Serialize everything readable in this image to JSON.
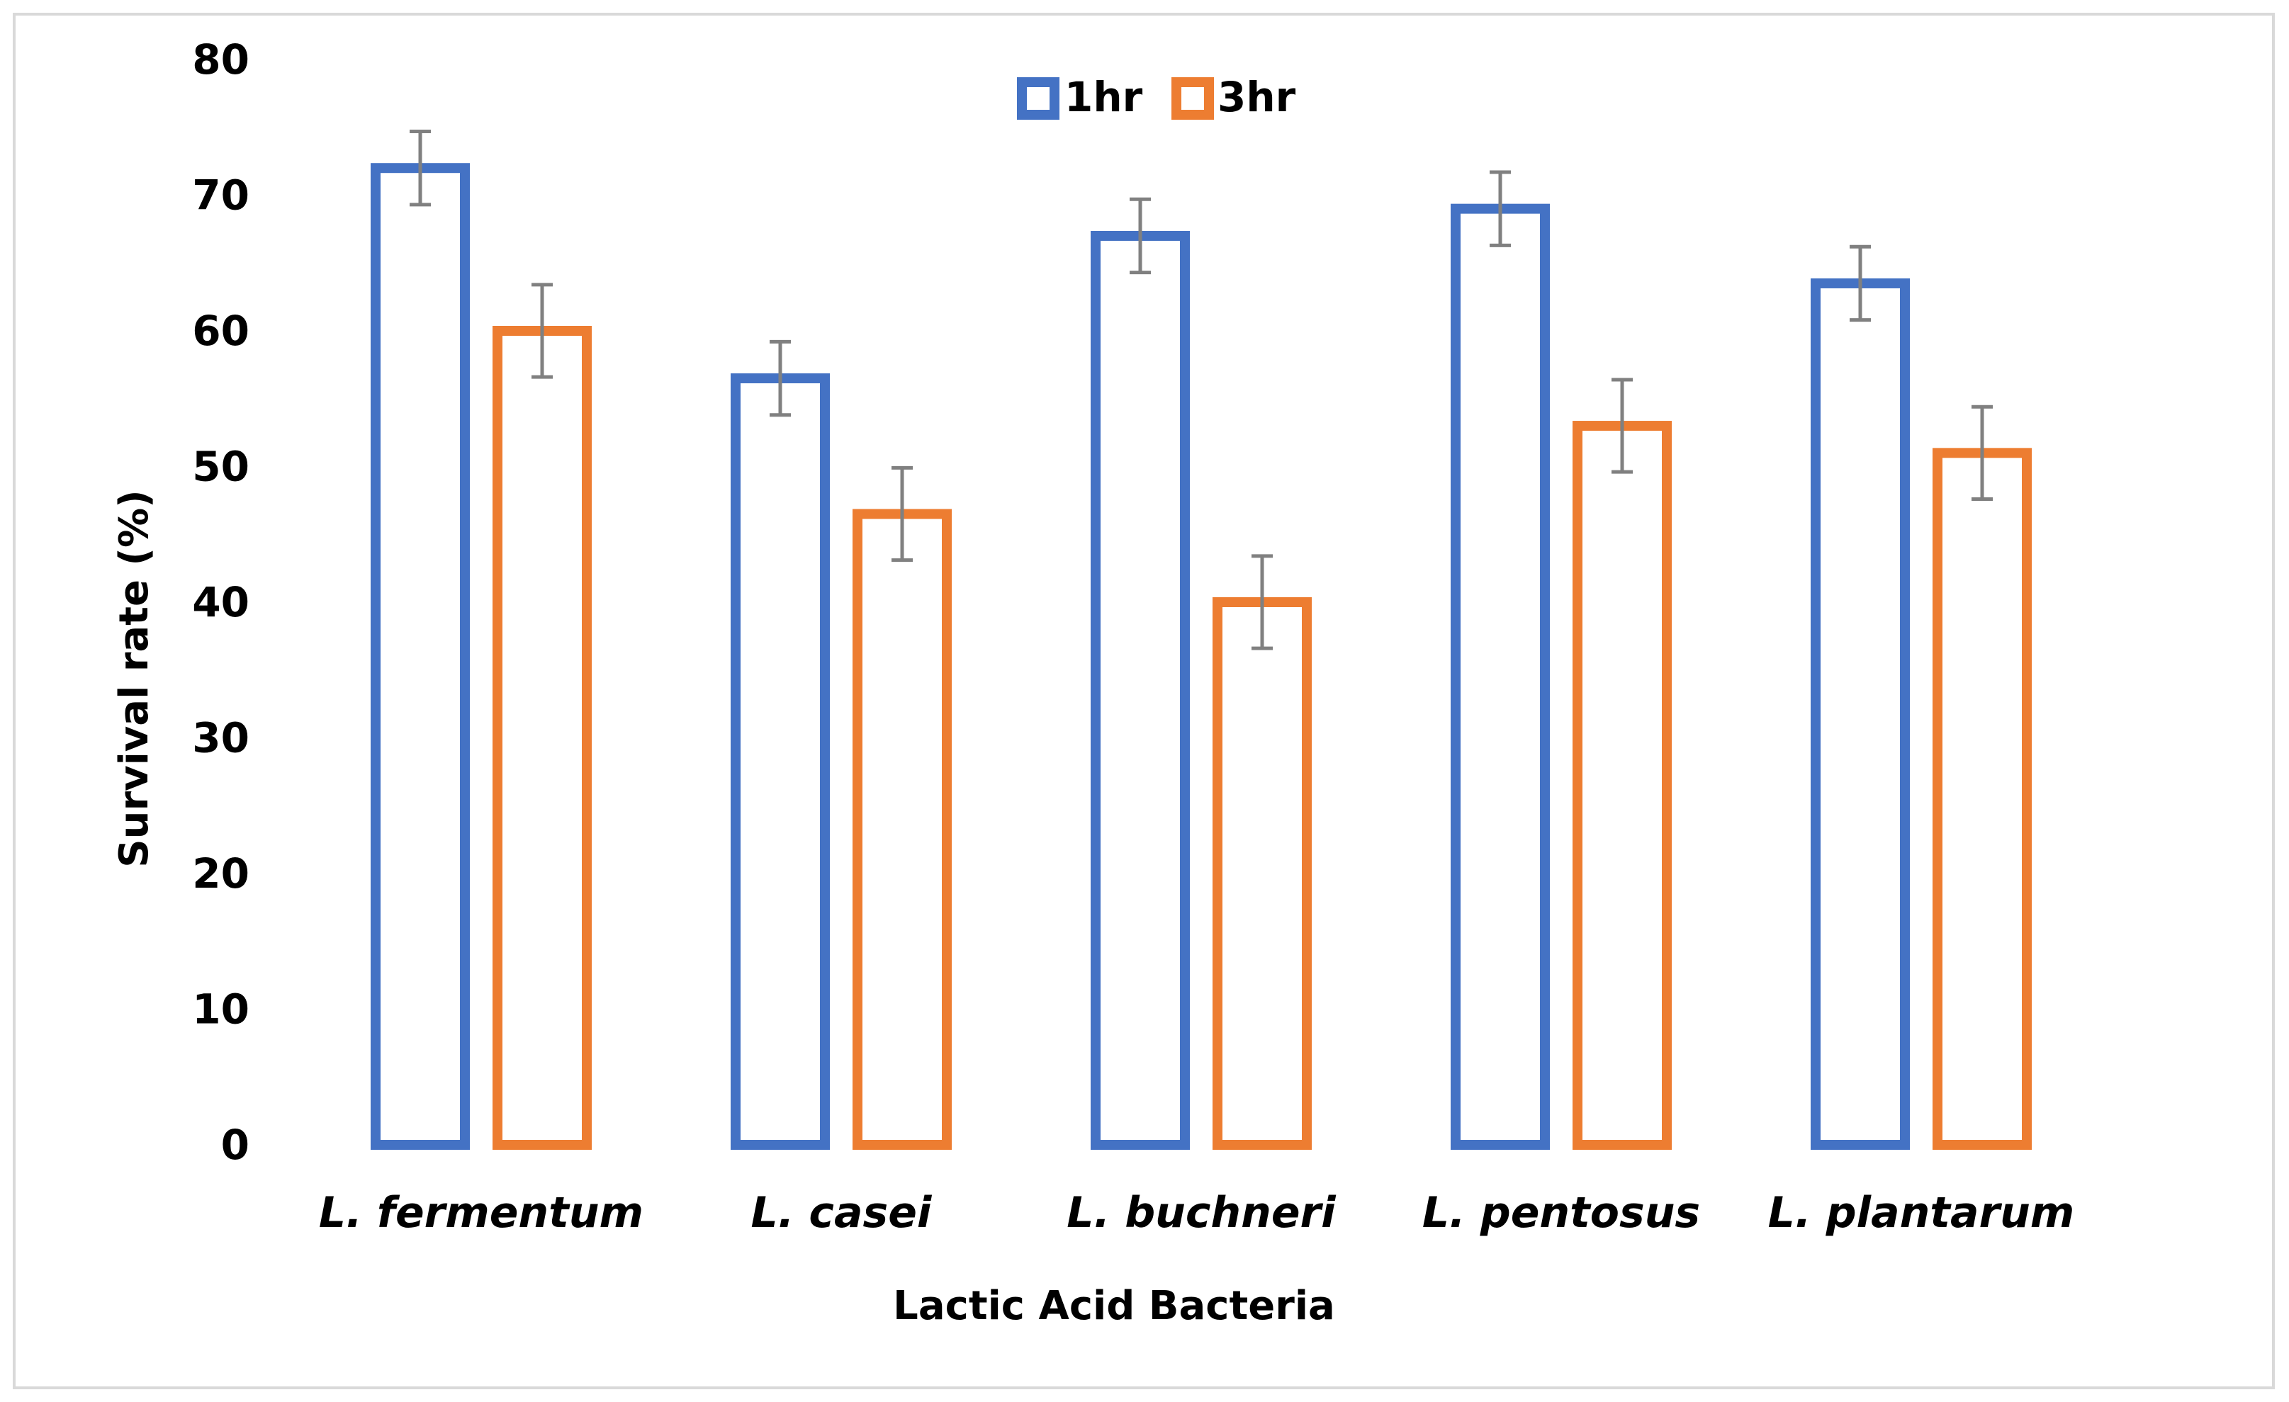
{
  "chart_data": {
    "type": "bar",
    "title": "",
    "xlabel": "Lactic Acid Bacteria",
    "ylabel": "Survival rate (%)",
    "ylim": [
      0,
      80
    ],
    "yticks": [
      0,
      10,
      20,
      30,
      40,
      50,
      60,
      70,
      80
    ],
    "categories": [
      "L. fermentum",
      "L. casei",
      "L. buchneri",
      "L. pentosus",
      "L. plantarum"
    ],
    "series": [
      {
        "name": "1hr",
        "color": "#4472c4",
        "values": [
          72,
          56.5,
          67,
          69,
          63.5
        ],
        "errors": [
          2.7,
          2.7,
          2.7,
          2.7,
          2.7
        ]
      },
      {
        "name": "3hr",
        "color": "#ed7d31",
        "values": [
          60,
          46.5,
          40,
          53,
          51
        ],
        "errors": [
          3.4,
          3.4,
          3.4,
          3.4,
          3.4
        ]
      }
    ],
    "error_bar_color": "#808080",
    "legend": "top-center",
    "grid": false
  }
}
